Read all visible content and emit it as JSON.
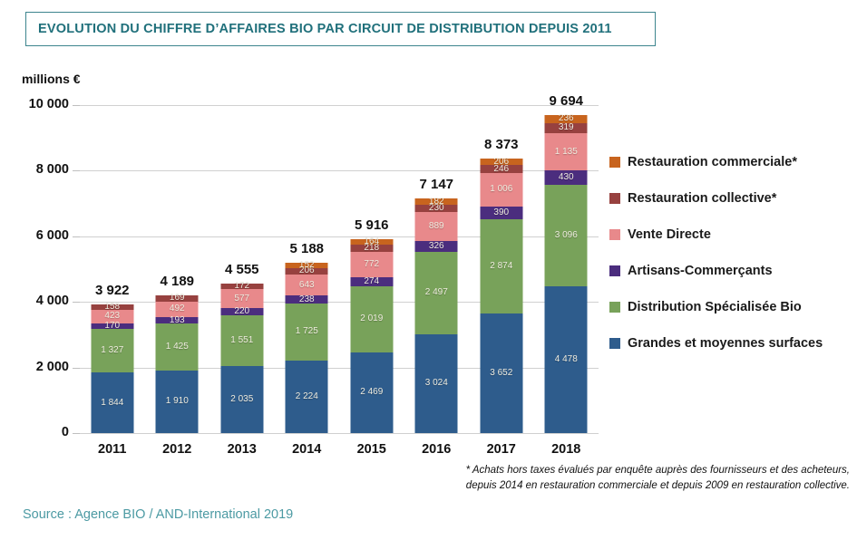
{
  "title": "EVOLUTION DU CHIFFRE D’AFFAIRES BIO PAR CIRCUIT DE DISTRIBUTION DEPUIS 2011",
  "source": "Source : Agence BIO / AND-International 2019",
  "footnote": {
    "line1": "* Achats hors taxes évalués par enquête auprès des fournisseurs et des acheteurs,",
    "line2": "depuis 2014 en restauration commerciale et  depuis 2009 en restauration collective."
  },
  "colors": {
    "title_teal": "#20707b",
    "title_border": "#3d858e",
    "source_teal": "#4c9aa3",
    "gridline": "#d0d0d0",
    "segment_label": "#efecdf",
    "axis_text": "#111111"
  },
  "chart_data": {
    "type": "bar",
    "stacked": true,
    "title": "EVOLUTION DU CHIFFRE D’AFFAIRES BIO PAR CIRCUIT DE DISTRIBUTION DEPUIS 2011",
    "unit_label": "millions €",
    "xlabel": "",
    "ylabel": "millions €",
    "ylim": [
      0,
      10000
    ],
    "yticks": [
      "10 000",
      "8 000",
      "6 000",
      "4 000",
      "2 000",
      "0"
    ],
    "grid": "horizontal",
    "legend_position": "right",
    "categories": [
      "2011",
      "2012",
      "2013",
      "2014",
      "2015",
      "2016",
      "2017",
      "2018"
    ],
    "totals": [
      3922,
      4189,
      4555,
      5188,
      5916,
      7147,
      8373,
      9694
    ],
    "total_labels": [
      "3 922",
      "4 189",
      "4 555",
      "5 188",
      "5 916",
      "7 147",
      "8 373",
      "9 694"
    ],
    "series": [
      {
        "name": "Grandes et moyennes surfaces",
        "color": "#2e5c8c",
        "values": [
          1844,
          1910,
          2035,
          2224,
          2469,
          3024,
          3652,
          4478
        ],
        "labels": [
          "1 844",
          "1 910",
          "2 035",
          "2 224",
          "2 469",
          "3 024",
          "3 652",
          "4 478"
        ]
      },
      {
        "name": "Distribution Spécialisée Bio",
        "color": "#78a25a",
        "values": [
          1327,
          1425,
          1551,
          1725,
          2019,
          2497,
          2874,
          3096
        ],
        "labels": [
          "1 327",
          "1 425",
          "1 551",
          "1 725",
          "2 019",
          "2 497",
          "2 874",
          "3 096"
        ]
      },
      {
        "name": "Artisans-Commerçants",
        "color": "#4b2d7e",
        "values": [
          170,
          193,
          220,
          238,
          274,
          326,
          390,
          430
        ],
        "labels": [
          "170",
          "193",
          "220",
          "238",
          "274",
          "326",
          "390",
          "430"
        ]
      },
      {
        "name": "Vente Directe",
        "color": "#e8898b",
        "values": [
          423,
          492,
          577,
          643,
          772,
          889,
          1006,
          1135
        ],
        "labels": [
          "423",
          "492",
          "577",
          "643",
          "772",
          "889",
          "1 006",
          "1 135"
        ]
      },
      {
        "name": "Restauration collective*",
        "color": "#97413f",
        "values": [
          158,
          169,
          172,
          206,
          218,
          230,
          246,
          319
        ],
        "labels": [
          "158",
          "169",
          "172",
          "206",
          "218",
          "230",
          "246",
          "319"
        ]
      },
      {
        "name": "Restauration commerciale*",
        "color": "#c8641e",
        "values": [
          null,
          null,
          null,
          152,
          164,
          182,
          206,
          236
        ],
        "labels": [
          "",
          "",
          "",
          "152",
          "164",
          "182",
          "206",
          "236"
        ]
      }
    ]
  }
}
